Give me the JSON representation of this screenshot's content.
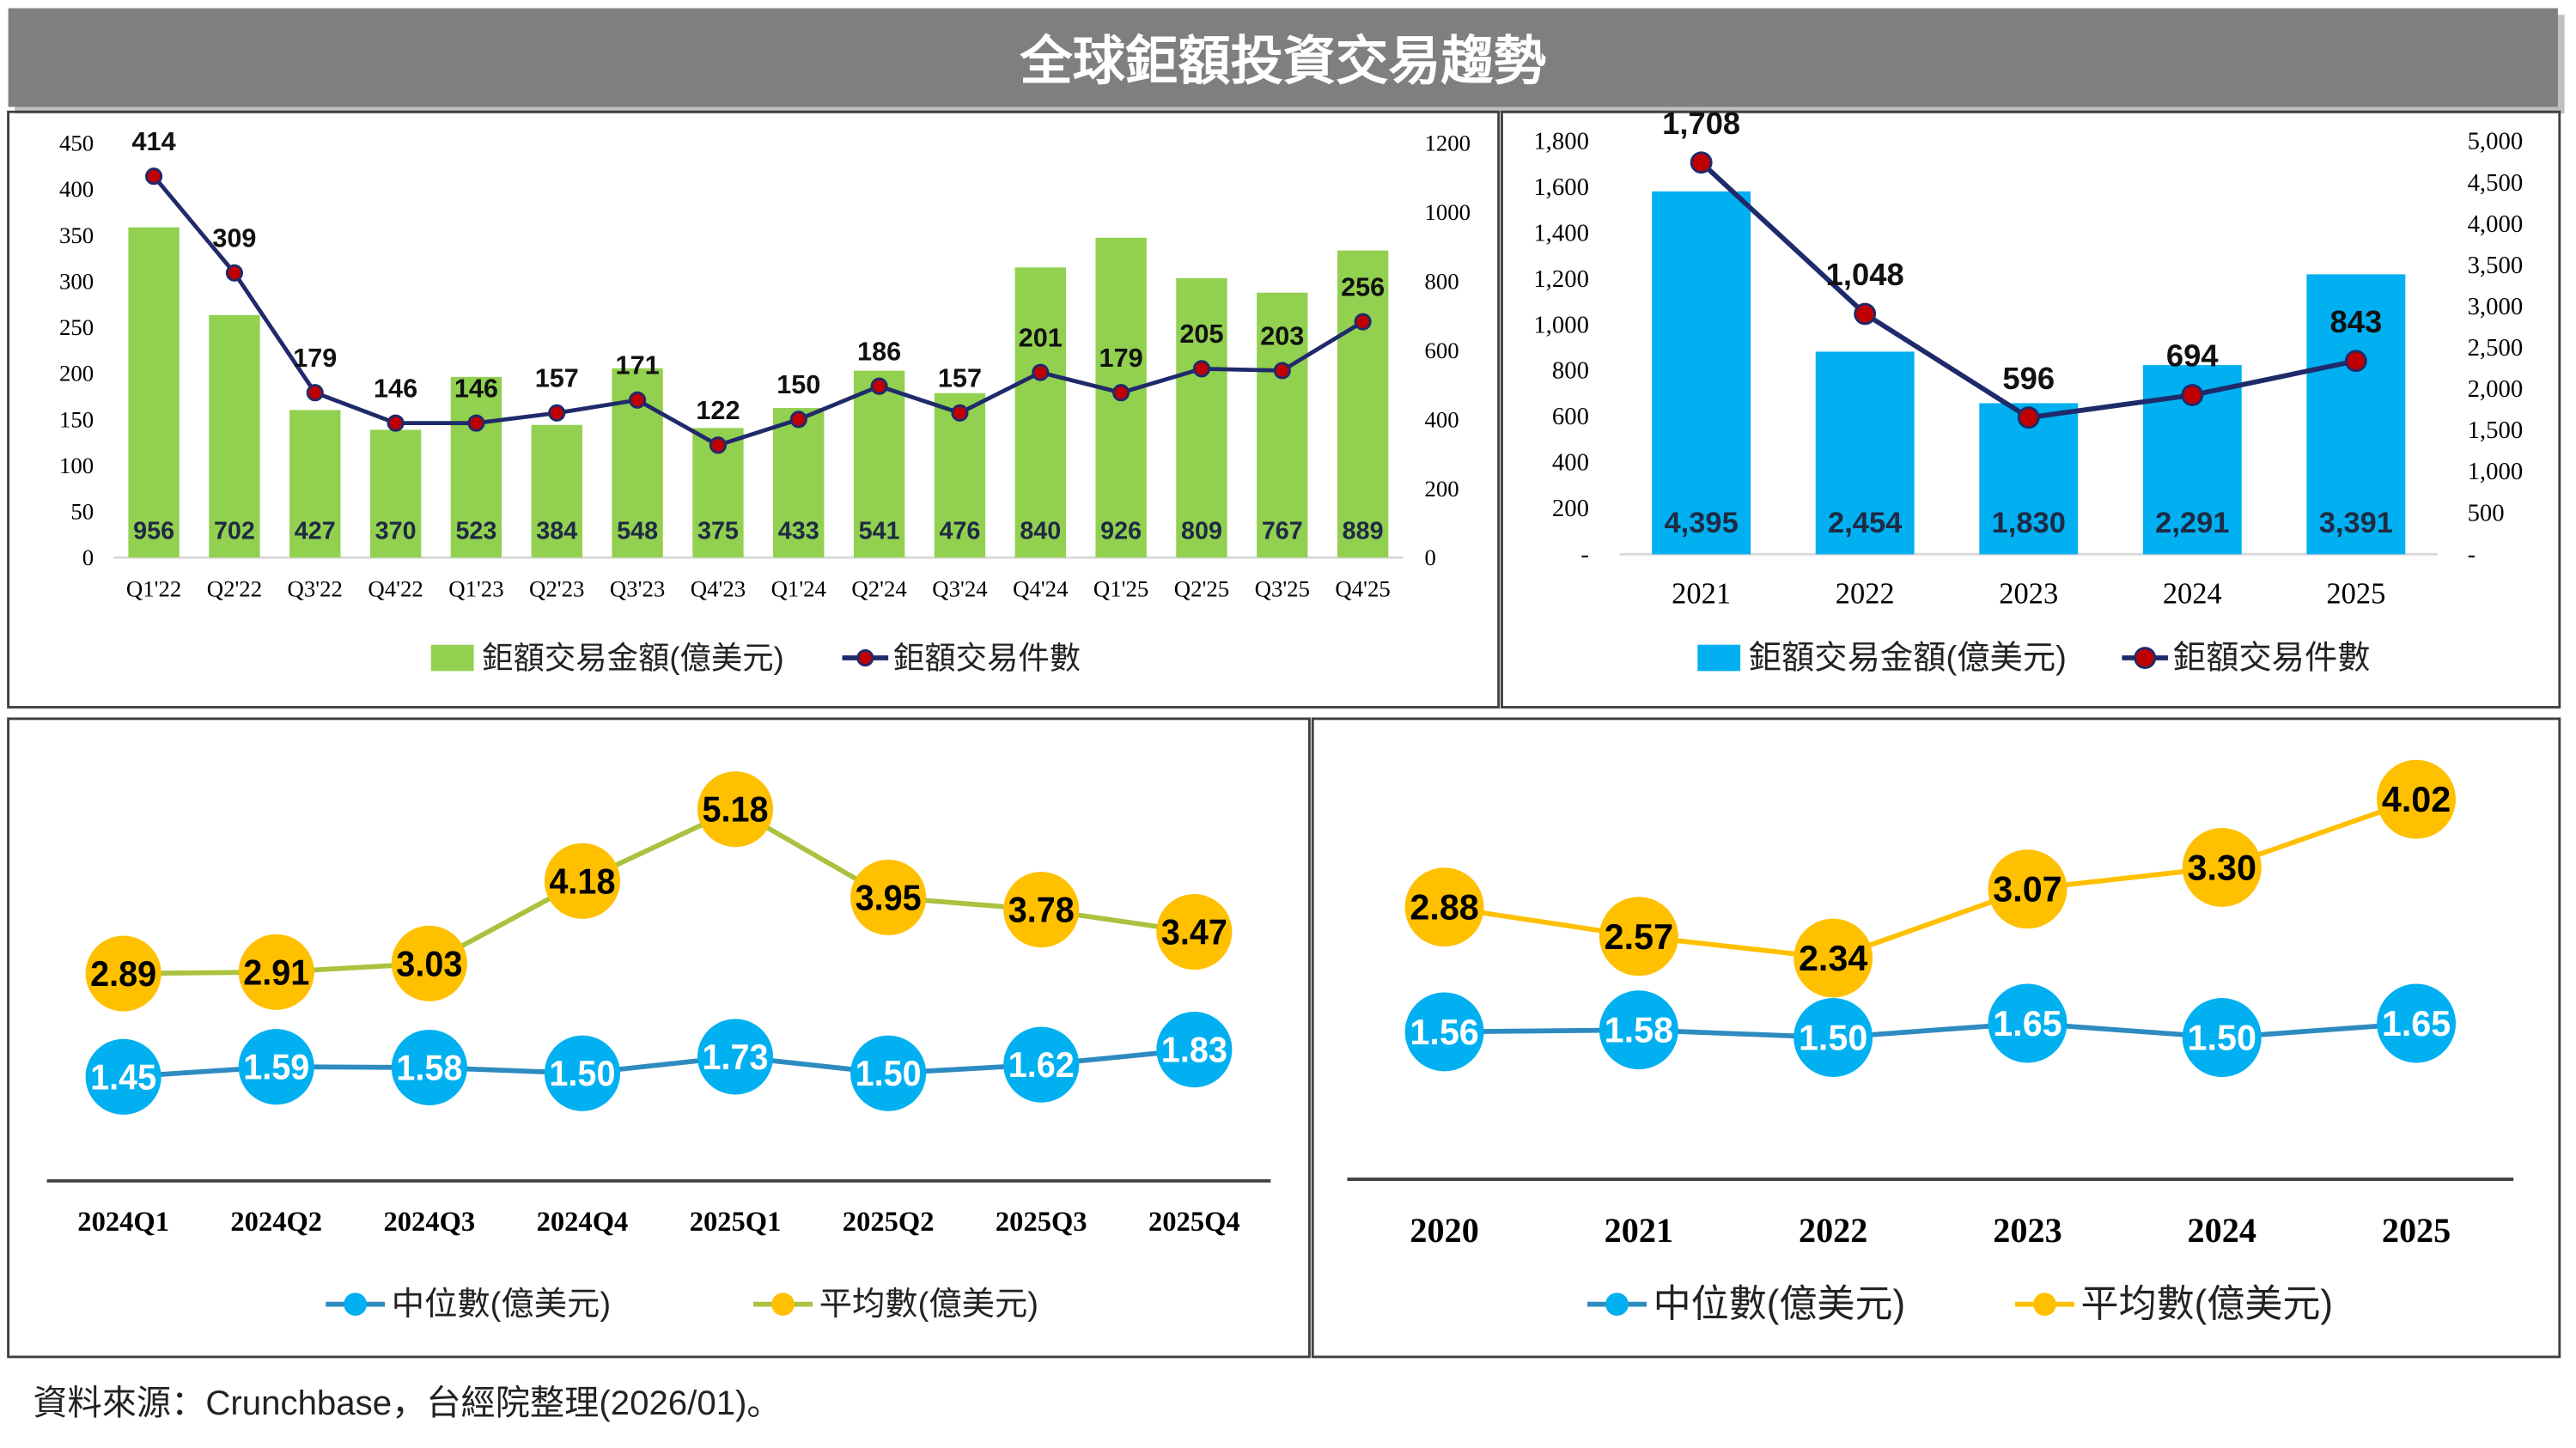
{
  "title": "全球鉅額投資交易趨勢",
  "source": "資料來源：Crunchbase，台經院整理(2026/01)。",
  "chart_data": [
    {
      "type": "combo",
      "categories": [
        "Q1'22",
        "Q2'22",
        "Q3'22",
        "Q4'22",
        "Q1'23",
        "Q2'23",
        "Q3'23",
        "Q4'23",
        "Q1'24",
        "Q2'24",
        "Q3'24",
        "Q4'24",
        "Q1'25",
        "Q2'25",
        "Q3'25",
        "Q4'25"
      ],
      "series": [
        {
          "name": "鉅額交易金額(億美元)",
          "type": "bar",
          "axis": "y2",
          "color": "#92d050",
          "values": [
            956,
            702,
            427,
            370,
            523,
            384,
            548,
            375,
            433,
            541,
            476,
            840,
            926,
            809,
            767,
            889
          ]
        },
        {
          "name": "鉅額交易件數",
          "type": "line",
          "color": "#1f2a6b",
          "marker_color": "#c00000",
          "values": [
            414,
            309,
            179,
            146,
            146,
            157,
            171,
            122,
            150,
            186,
            157,
            201,
            179,
            205,
            203,
            256
          ]
        }
      ],
      "ylim": [
        0,
        450
      ],
      "yticks": [
        0,
        50,
        100,
        150,
        200,
        250,
        300,
        350,
        400,
        450
      ],
      "y2lim": [
        0,
        1200
      ],
      "y2ticks": [
        0,
        200,
        400,
        600,
        800,
        1000,
        1200
      ]
    },
    {
      "type": "combo",
      "categories": [
        "2021",
        "2022",
        "2023",
        "2024",
        "2025"
      ],
      "series": [
        {
          "name": "鉅額交易金額(億美元)",
          "type": "bar",
          "axis": "y2",
          "color": "#00b0f0",
          "values": [
            4395,
            2454,
            1830,
            2291,
            3391
          ],
          "value_labels": [
            "4,395",
            "2,454",
            "1,830",
            "2,291",
            "3,391"
          ]
        },
        {
          "name": "鉅額交易件數",
          "type": "line",
          "color": "#1f2a6b",
          "marker_color": "#c00000",
          "values": [
            1708,
            1048,
            596,
            694,
            843
          ],
          "value_labels": [
            "1,708",
            "1,048",
            "596",
            "694",
            "843"
          ]
        }
      ],
      "ylim": [
        0,
        1800
      ],
      "yticks": [
        {
          "value": 0,
          "label": "-"
        },
        200,
        400,
        600,
        800,
        {
          "value": 1000,
          "label": "1,000"
        },
        {
          "value": 1200,
          "label": "1,200"
        },
        {
          "value": 1400,
          "label": "1,400"
        },
        {
          "value": 1600,
          "label": "1,600"
        },
        {
          "value": 1800,
          "label": "1,800"
        }
      ],
      "y2lim": [
        0,
        5000
      ],
      "y2ticks": [
        {
          "value": 0,
          "label": "-"
        },
        500,
        {
          "value": 1000,
          "label": "1,000"
        },
        {
          "value": 1500,
          "label": "1,500"
        },
        {
          "value": 2000,
          "label": "2,000"
        },
        {
          "value": 2500,
          "label": "2,500"
        },
        {
          "value": 3000,
          "label": "3,000"
        },
        {
          "value": 3500,
          "label": "3,500"
        },
        {
          "value": 4000,
          "label": "4,000"
        },
        {
          "value": 4500,
          "label": "4,500"
        },
        {
          "value": 5000,
          "label": "5,000"
        }
      ]
    },
    {
      "type": "line",
      "categories": [
        "2024Q1",
        "2024Q2",
        "2024Q3",
        "2024Q4",
        "2025Q1",
        "2025Q2",
        "2025Q3",
        "2025Q4"
      ],
      "series": [
        {
          "name": "中位數(億美元)",
          "color": "#00b0f0",
          "line_color": "#2e8bc0",
          "label_color": "#ffffff",
          "values": [
            1.45,
            1.59,
            1.58,
            1.5,
            1.73,
            1.5,
            1.62,
            1.83
          ],
          "value_labels": [
            "1.45",
            "1.59",
            "1.58",
            "1.50",
            "1.73",
            "1.50",
            "1.62",
            "1.83"
          ]
        },
        {
          "name": "平均數(億美元)",
          "color": "#ffc000",
          "line_color": "#a9c23f",
          "label_color": "#000000",
          "values": [
            2.89,
            2.91,
            3.03,
            4.18,
            5.18,
            3.95,
            3.78,
            3.47
          ],
          "value_labels": [
            "2.89",
            "2.91",
            "3.03",
            "4.18",
            "5.18",
            "3.95",
            "3.78",
            "3.47"
          ]
        }
      ]
    },
    {
      "type": "line",
      "categories": [
        "2020",
        "2021",
        "2022",
        "2023",
        "2024",
        "2025"
      ],
      "series": [
        {
          "name": "中位數(億美元)",
          "color": "#00b0f0",
          "line_color": "#2e8bc0",
          "label_color": "#ffffff",
          "values": [
            1.56,
            1.58,
            1.5,
            1.65,
            1.5,
            1.65
          ],
          "value_labels": [
            "1.56",
            "1.58",
            "1.50",
            "1.65",
            "1.50",
            "1.65"
          ]
        },
        {
          "name": "平均數(億美元)",
          "color": "#ffc000",
          "line_color": "#ffc000",
          "label_color": "#000000",
          "values": [
            2.88,
            2.57,
            2.34,
            3.07,
            3.3,
            4.02
          ],
          "value_labels": [
            "2.88",
            "2.57",
            "2.34",
            "3.07",
            "3.30",
            "4.02"
          ]
        }
      ]
    }
  ]
}
